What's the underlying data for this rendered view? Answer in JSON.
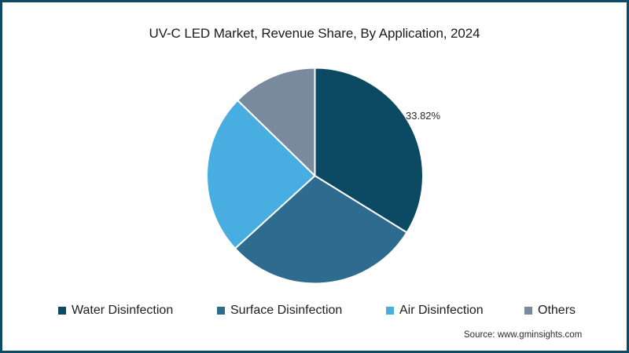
{
  "title": "UV-C LED Market, Revenue Share, By Application, 2024",
  "source": "Source: www.gminsights.com",
  "colors": {
    "border": "#0d4a63",
    "water": "#0b4a62",
    "surface": "#2e6c8f",
    "air": "#48ade1",
    "others": "#7a8a9e"
  },
  "legend": [
    {
      "label": "Water Disinfection",
      "color": "#0b4a62"
    },
    {
      "label": "Surface Disinfection",
      "color": "#2e6c8f"
    },
    {
      "label": "Air Disinfection",
      "color": "#48ade1"
    },
    {
      "label": "Others",
      "color": "#7a8a9e"
    }
  ],
  "data_labels": {
    "water": "33.82%"
  },
  "chart_data": {
    "type": "pie",
    "title": "UV-C LED Market, Revenue Share, By Application, 2024",
    "categories": [
      "Water Disinfection",
      "Surface Disinfection",
      "Air Disinfection",
      "Others"
    ],
    "values": [
      33.82,
      29.4,
      24.1,
      12.68
    ],
    "labels_shown": {
      "Water Disinfection": "33.82%"
    },
    "start_angle": "12 o'clock, clockwise",
    "legend_position": "bottom",
    "colors": [
      "#0b4a62",
      "#2e6c8f",
      "#48ade1",
      "#7a8a9e"
    ],
    "source": "Source: www.gminsights.com"
  }
}
